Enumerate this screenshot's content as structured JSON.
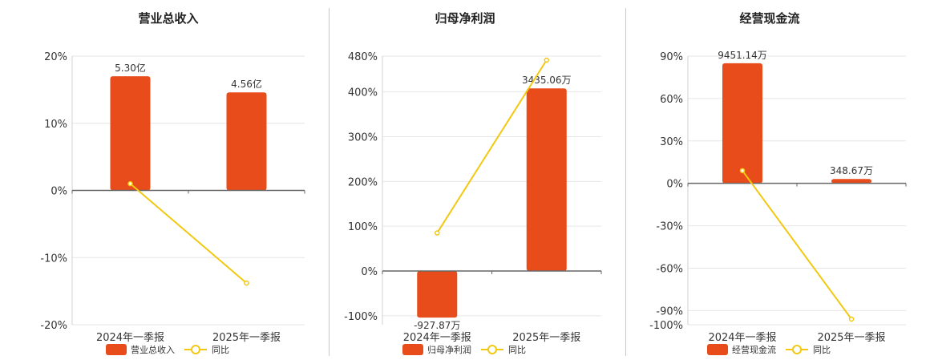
{
  "colors": {
    "bar": "#E84C1B",
    "line": "#F2C811",
    "grid": "#e6e6e6",
    "axis": "#666666"
  },
  "chart_data": [
    {
      "type": "bar",
      "title": "营业总收入",
      "categories": [
        "2024年一季报",
        "2025年一季报"
      ],
      "ylim": [
        -20,
        20
      ],
      "ticks": [
        20,
        10,
        0,
        -10,
        -20
      ],
      "tick_labels": [
        "20%",
        "10%",
        "0%",
        "-10%",
        "-20%"
      ],
      "grid": true,
      "series": [
        {
          "name": "营业总收入",
          "kind": "bar",
          "values": [
            17.0,
            14.6
          ],
          "labels": [
            "5.30亿",
            "4.56亿"
          ]
        },
        {
          "name": "同比",
          "kind": "line",
          "values": [
            1.0,
            -13.8
          ]
        }
      ],
      "legend": "bottom-center"
    },
    {
      "type": "bar",
      "title": "归母净利润",
      "categories": [
        "2024年一季报",
        "2025年一季报"
      ],
      "ylim": [
        -120,
        480
      ],
      "ticks": [
        480,
        400,
        300,
        200,
        100,
        0,
        -100
      ],
      "tick_labels": [
        "480%",
        "400%",
        "300%",
        "200%",
        "100%",
        "0%",
        "-100%"
      ],
      "grid": true,
      "series": [
        {
          "name": "归母净利润",
          "kind": "bar",
          "values": [
            -104,
            408
          ],
          "labels": [
            "-927.87万",
            "3435.06万"
          ]
        },
        {
          "name": "同比",
          "kind": "line",
          "values": [
            85,
            471
          ]
        }
      ],
      "legend": "bottom-center"
    },
    {
      "type": "bar",
      "title": "经营现金流",
      "categories": [
        "2024年一季报",
        "2025年一季报"
      ],
      "ylim": [
        -100,
        90
      ],
      "ticks": [
        90,
        60,
        30,
        0,
        -30,
        -60,
        -90,
        -100
      ],
      "tick_labels": [
        "90%",
        "60%",
        "30%",
        "0%",
        "-30%",
        "-60%",
        "-90%",
        "-100%"
      ],
      "grid": true,
      "series": [
        {
          "name": "经营现金流",
          "kind": "bar",
          "values": [
            85,
            3.1
          ],
          "labels": [
            "9451.14万",
            "348.67万"
          ]
        },
        {
          "name": "同比",
          "kind": "line",
          "values": [
            9,
            -96
          ]
        }
      ],
      "legend": "bottom-center"
    }
  ]
}
